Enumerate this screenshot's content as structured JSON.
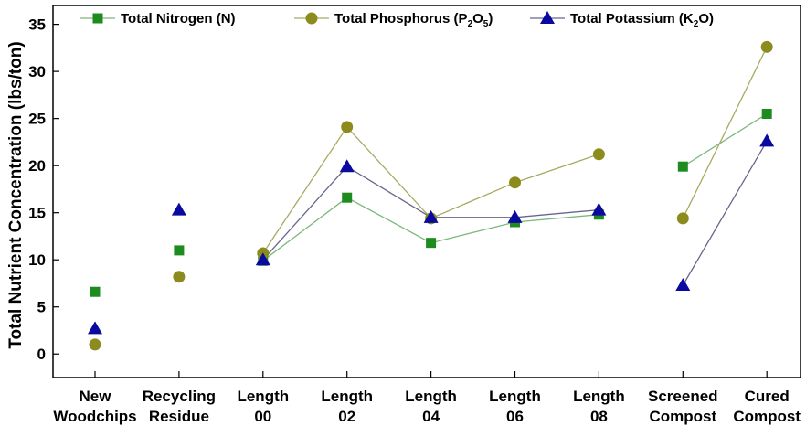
{
  "chart_data": {
    "type": "line",
    "title": "",
    "xlabel": "",
    "ylabel": "Total Nutrient Concentration (lbs/ton)",
    "ylim": [
      -2.5,
      37
    ],
    "yticks": [
      0,
      5,
      10,
      15,
      20,
      25,
      30,
      35
    ],
    "grid": false,
    "legend_position": "top",
    "categories": [
      [
        "New",
        "Woodchips"
      ],
      [
        "Recycling",
        "Residue"
      ],
      [
        "Length",
        "00"
      ],
      [
        "Length",
        "02"
      ],
      [
        "Length",
        "04"
      ],
      [
        "Length",
        "06"
      ],
      [
        "Length",
        "08"
      ],
      [
        "Screened",
        "Compost"
      ],
      [
        "Cured",
        "Compost"
      ]
    ],
    "connected_groups": [
      [
        2,
        3,
        4,
        5,
        6
      ],
      [
        7,
        8
      ]
    ],
    "series": [
      {
        "name": "Total Nitrogen (N)",
        "legend_parts": [
          {
            "t": "Total Nitrogen (N)",
            "sub": false
          }
        ],
        "marker": "square",
        "marker_color": "#1E8B1E",
        "line_color": "#7CB87C",
        "values": [
          6.6,
          11.0,
          9.9,
          16.6,
          11.8,
          14.0,
          14.8,
          19.9,
          25.5
        ]
      },
      {
        "name": "Total Phosphorus (P2O5)",
        "legend_parts": [
          {
            "t": "Total Phosphorus (P",
            "sub": false
          },
          {
            "t": "2",
            "sub": true
          },
          {
            "t": "O",
            "sub": false
          },
          {
            "t": "5",
            "sub": true
          },
          {
            "t": ")",
            "sub": false
          }
        ],
        "marker": "circle",
        "marker_color": "#8C8C1E",
        "line_color": "#A9A962",
        "values": [
          1.0,
          8.2,
          10.7,
          24.1,
          14.4,
          18.2,
          21.2,
          14.4,
          32.6
        ]
      },
      {
        "name": "Total Potassium (K2O)",
        "legend_parts": [
          {
            "t": "Total Potassium (K",
            "sub": false
          },
          {
            "t": "2",
            "sub": true
          },
          {
            "t": "O)",
            "sub": false
          }
        ],
        "marker": "triangle",
        "marker_color": "#0A0AA0",
        "line_color": "#66668C",
        "values": [
          2.7,
          15.3,
          10.0,
          19.9,
          14.5,
          14.5,
          15.3,
          7.3,
          22.6
        ]
      }
    ]
  }
}
